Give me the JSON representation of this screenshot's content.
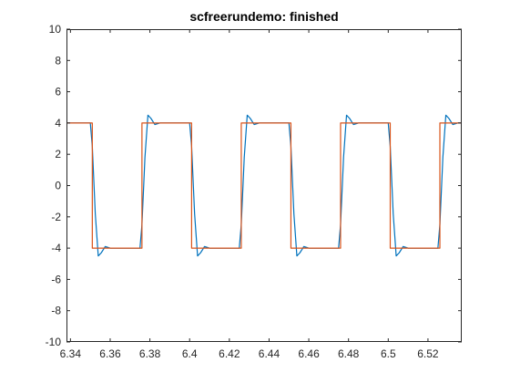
{
  "chart_data": {
    "type": "line",
    "title": "scfreerundemo: finished",
    "xlabel": "",
    "ylabel": "",
    "xlim": [
      6.338,
      6.537
    ],
    "ylim": [
      -10,
      10
    ],
    "x_ticks": [
      6.34,
      6.36,
      6.38,
      6.4,
      6.42,
      6.44,
      6.46,
      6.48,
      6.5,
      6.52
    ],
    "x_tick_labels": [
      "6.34",
      "6.36",
      "6.38",
      "6.4",
      "6.42",
      "6.44",
      "6.46",
      "6.48",
      "6.5",
      "6.52"
    ],
    "y_ticks": [
      10,
      8,
      6,
      4,
      2,
      0,
      -2,
      -4,
      -6,
      -8,
      -10
    ],
    "y_tick_labels": [
      "10",
      "8",
      "6",
      "4",
      "2",
      "0",
      "-2",
      "-4",
      "-6",
      "-8",
      "-10"
    ],
    "grid": false,
    "legend": "none",
    "series": [
      {
        "color": "#0072BD",
        "x": [
          6.338,
          6.35,
          6.351,
          6.3525,
          6.354,
          6.3555,
          6.3575,
          6.36,
          6.365,
          6.375,
          6.376,
          6.3775,
          6.379,
          6.3805,
          6.3825,
          6.385,
          6.39,
          6.4,
          6.401,
          6.4025,
          6.404,
          6.4055,
          6.4075,
          6.41,
          6.415,
          6.425,
          6.426,
          6.4275,
          6.429,
          6.4305,
          6.4325,
          6.435,
          6.44,
          6.45,
          6.451,
          6.4525,
          6.454,
          6.4555,
          6.4575,
          6.46,
          6.465,
          6.475,
          6.476,
          6.4775,
          6.479,
          6.4805,
          6.4825,
          6.485,
          6.49,
          6.5,
          6.501,
          6.5025,
          6.504,
          6.5055,
          6.5075,
          6.51,
          6.515,
          6.525,
          6.526,
          6.5275,
          6.529,
          6.5305,
          6.5325,
          6.535,
          6.537
        ],
        "y": [
          4,
          4,
          2.5,
          -1.8,
          -4.5,
          -4.3,
          -3.9,
          -4.0,
          -4.0,
          -4,
          -2.5,
          1.8,
          4.5,
          4.3,
          3.9,
          4.0,
          4.0,
          4,
          2.5,
          -1.8,
          -4.5,
          -4.3,
          -3.9,
          -4.0,
          -4.0,
          -4,
          -2.5,
          1.8,
          4.5,
          4.3,
          3.9,
          4.0,
          4.0,
          4,
          2.5,
          -1.8,
          -4.5,
          -4.3,
          -3.9,
          -4.0,
          -4.0,
          -4,
          -2.5,
          1.8,
          4.5,
          4.3,
          3.9,
          4.0,
          4.0,
          4,
          2.5,
          -1.8,
          -4.5,
          -4.3,
          -3.9,
          -4.0,
          -4.0,
          -4,
          -2.5,
          1.8,
          4.5,
          4.3,
          3.9,
          4.0,
          4.0
        ]
      },
      {
        "color": "#D95319",
        "x": [
          6.338,
          6.351,
          6.351,
          6.376,
          6.376,
          6.401,
          6.401,
          6.426,
          6.426,
          6.451,
          6.451,
          6.476,
          6.476,
          6.501,
          6.501,
          6.526,
          6.526,
          6.537
        ],
        "y": [
          4,
          4,
          -4,
          -4,
          4,
          4,
          -4,
          -4,
          4,
          4,
          -4,
          -4,
          4,
          4,
          -4,
          -4,
          4,
          4
        ]
      }
    ]
  }
}
